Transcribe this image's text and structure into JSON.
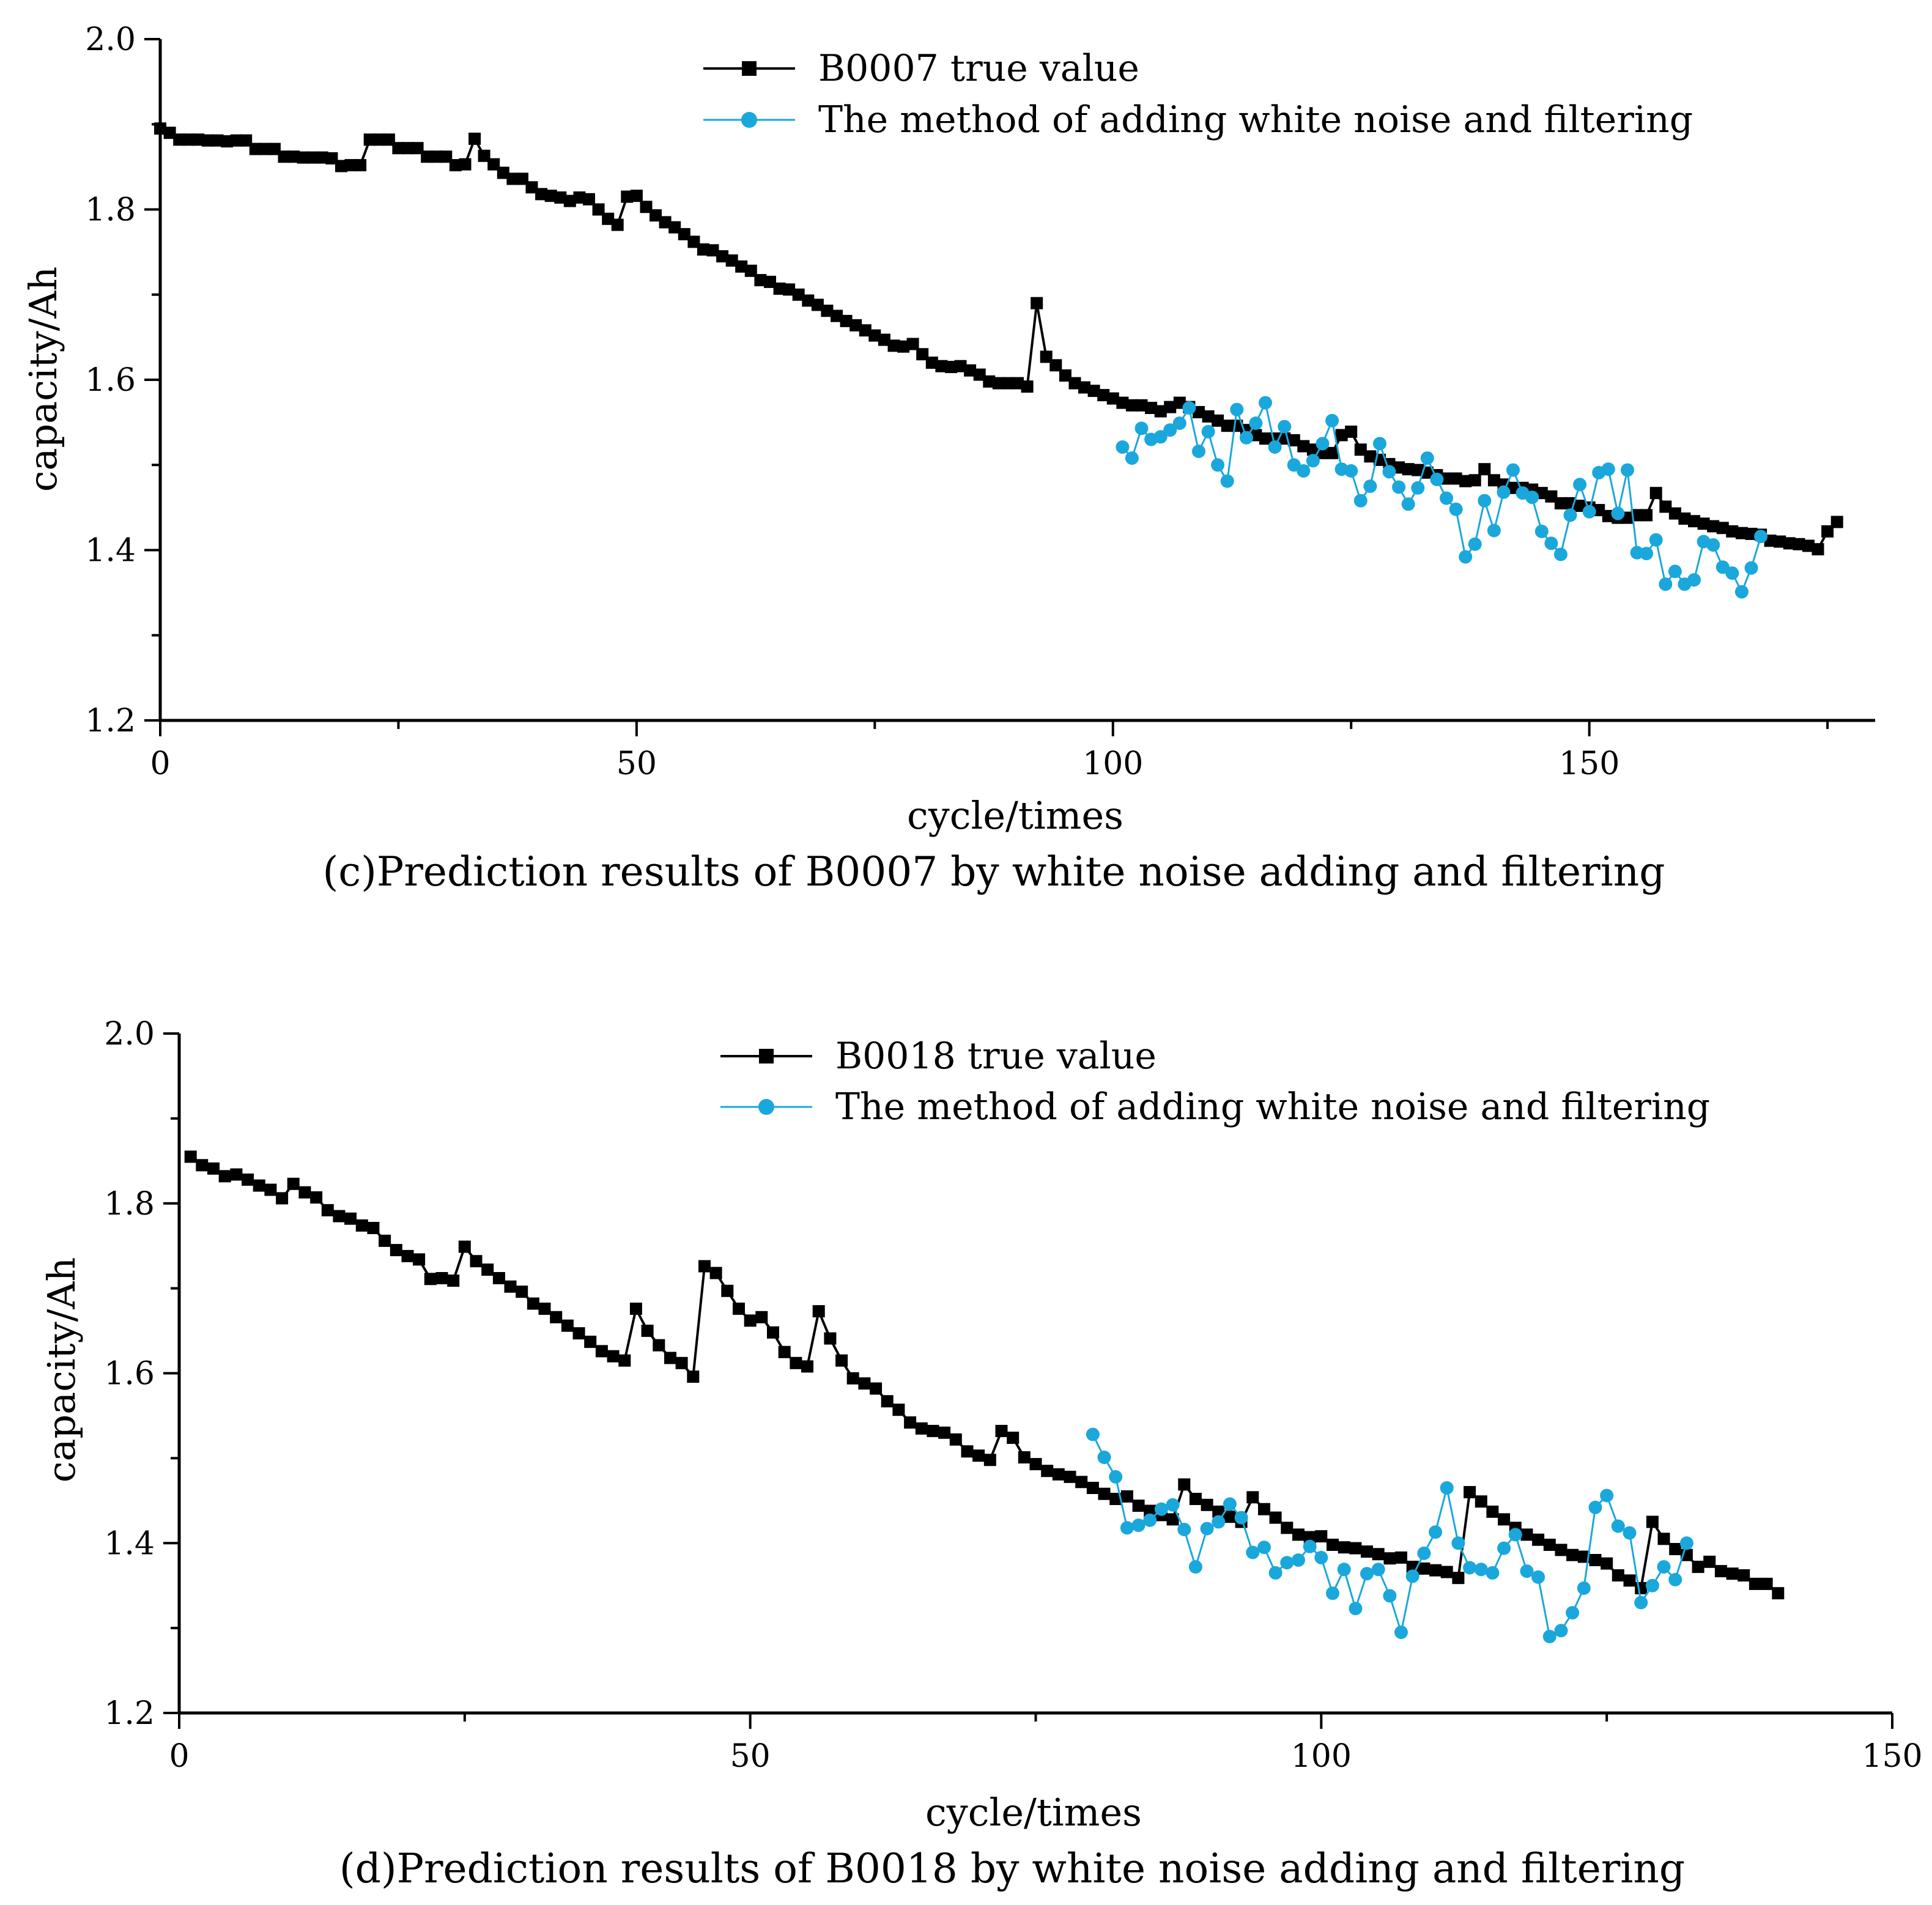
{
  "colors": {
    "true_value": "#000000",
    "predicted": "#1aa7dc",
    "background": "#ffffff"
  },
  "chart_data": [
    {
      "type": "line",
      "panel": "c",
      "caption": "(c)Prediction results of B0007 by white noise adding and filtering",
      "xlabel": "cycle/times",
      "ylabel": "capacity/Ah",
      "xlim": [
        0,
        180
      ],
      "ylim": [
        1.2,
        2.0
      ],
      "xticks": [
        0,
        50,
        100,
        150
      ],
      "yticks": [
        1.2,
        1.4,
        1.6,
        1.8,
        2.0
      ],
      "xtick_labels": [
        "0",
        "50",
        "100",
        "150"
      ],
      "ytick_labels": [
        "1.2",
        "1.4",
        "1.6",
        "1.8",
        "2.0"
      ],
      "legend": [
        "B0007 true value",
        "The method of adding white noise and filtering"
      ],
      "series": [
        {
          "name": "B0007 true value",
          "marker": "square",
          "x_start": 0,
          "values": [
            1.895,
            1.89,
            1.882,
            1.882,
            1.882,
            1.881,
            1.881,
            1.88,
            1.881,
            1.881,
            1.871,
            1.871,
            1.871,
            1.862,
            1.862,
            1.861,
            1.861,
            1.861,
            1.86,
            1.851,
            1.852,
            1.852,
            1.882,
            1.882,
            1.882,
            1.872,
            1.872,
            1.872,
            1.862,
            1.862,
            1.862,
            1.852,
            1.853,
            1.883,
            1.863,
            1.853,
            1.843,
            1.836,
            1.836,
            1.826,
            1.818,
            1.816,
            1.814,
            1.81,
            1.814,
            1.812,
            1.8,
            1.789,
            1.782,
            1.815,
            1.816,
            1.803,
            1.793,
            1.785,
            1.779,
            1.771,
            1.762,
            1.753,
            1.752,
            1.745,
            1.74,
            1.733,
            1.728,
            1.717,
            1.715,
            1.707,
            1.706,
            1.7,
            1.693,
            1.688,
            1.681,
            1.675,
            1.669,
            1.664,
            1.658,
            1.652,
            1.647,
            1.64,
            1.639,
            1.642,
            1.63,
            1.62,
            1.616,
            1.615,
            1.616,
            1.611,
            1.606,
            1.598,
            1.596,
            1.596,
            1.596,
            1.592,
            1.69,
            1.627,
            1.617,
            1.605,
            1.596,
            1.591,
            1.587,
            1.582,
            1.578,
            1.573,
            1.57,
            1.57,
            1.567,
            1.563,
            1.568,
            1.573,
            1.568,
            1.562,
            1.557,
            1.552,
            1.546,
            1.546,
            1.541,
            1.535,
            1.531,
            1.531,
            1.531,
            1.529,
            1.522,
            1.518,
            1.514,
            1.514,
            1.535,
            1.539,
            1.518,
            1.51,
            1.506,
            1.501,
            1.497,
            1.495,
            1.494,
            1.491,
            1.488,
            1.484,
            1.484,
            1.481,
            1.482,
            1.495,
            1.482,
            1.477,
            1.473,
            1.473,
            1.471,
            1.467,
            1.463,
            1.455,
            1.455,
            1.452,
            1.45,
            1.447,
            1.44,
            1.438,
            1.438,
            1.441,
            1.441,
            1.467,
            1.451,
            1.443,
            1.437,
            1.434,
            1.431,
            1.428,
            1.426,
            1.422,
            1.42,
            1.419,
            1.418,
            1.411,
            1.41,
            1.408,
            1.407,
            1.405,
            1.401,
            1.422,
            1.433
          ]
        },
        {
          "name": "The method of adding white noise and filtering",
          "marker": "circle",
          "x_start": 101,
          "values": [
            1.521,
            1.508,
            1.543,
            1.53,
            1.533,
            1.541,
            1.549,
            1.567,
            1.516,
            1.539,
            1.5,
            1.481,
            1.565,
            1.532,
            1.549,
            1.573,
            1.521,
            1.545,
            1.5,
            1.493,
            1.505,
            1.525,
            1.552,
            1.495,
            1.493,
            1.458,
            1.475,
            1.525,
            1.492,
            1.474,
            1.454,
            1.473,
            1.508,
            1.483,
            1.461,
            1.448,
            1.392,
            1.407,
            1.458,
            1.423,
            1.468,
            1.494,
            1.467,
            1.462,
            1.422,
            1.408,
            1.395,
            1.441,
            1.477,
            1.445,
            1.491,
            1.495,
            1.443,
            1.494,
            1.397,
            1.396,
            1.412,
            1.36,
            1.375,
            1.36,
            1.365,
            1.41,
            1.406,
            1.38,
            1.373,
            1.351,
            1.379,
            1.416
          ]
        }
      ]
    },
    {
      "type": "line",
      "panel": "d",
      "caption": "(d)Prediction results of B0018 by white noise adding and filtering",
      "xlabel": "cycle/times",
      "ylabel": "capacity/Ah",
      "xlim": [
        0,
        150
      ],
      "ylim": [
        1.2,
        2.0
      ],
      "xticks": [
        0,
        50,
        100,
        150
      ],
      "yticks": [
        1.2,
        1.4,
        1.6,
        1.8,
        2.0
      ],
      "xtick_labels": [
        "0",
        "50",
        "100",
        "150"
      ],
      "ytick_labels": [
        "1.2",
        "1.4",
        "1.6",
        "1.8",
        "2.0"
      ],
      "legend": [
        "B0018 true value",
        "The method of adding white noise and filtering"
      ],
      "series": [
        {
          "name": "B0018 true value",
          "marker": "square",
          "x_start": 1,
          "values": [
            1.855,
            1.845,
            1.841,
            1.832,
            1.834,
            1.828,
            1.821,
            1.816,
            1.806,
            1.823,
            1.813,
            1.807,
            1.792,
            1.785,
            1.782,
            1.774,
            1.771,
            1.756,
            1.745,
            1.738,
            1.734,
            1.711,
            1.712,
            1.709,
            1.749,
            1.732,
            1.722,
            1.712,
            1.702,
            1.696,
            1.682,
            1.676,
            1.666,
            1.656,
            1.647,
            1.637,
            1.626,
            1.62,
            1.615,
            1.676,
            1.65,
            1.633,
            1.618,
            1.612,
            1.596,
            1.726,
            1.718,
            1.697,
            1.676,
            1.662,
            1.666,
            1.648,
            1.625,
            1.612,
            1.608,
            1.673,
            1.641,
            1.615,
            1.594,
            1.588,
            1.582,
            1.567,
            1.557,
            1.542,
            1.535,
            1.532,
            1.53,
            1.522,
            1.508,
            1.503,
            1.498,
            1.532,
            1.524,
            1.501,
            1.493,
            1.485,
            1.481,
            1.478,
            1.472,
            1.465,
            1.458,
            1.452,
            1.455,
            1.444,
            1.438,
            1.433,
            1.428,
            1.469,
            1.452,
            1.445,
            1.437,
            1.431,
            1.425,
            1.454,
            1.44,
            1.43,
            1.418,
            1.41,
            1.407,
            1.408,
            1.398,
            1.395,
            1.394,
            1.39,
            1.387,
            1.382,
            1.383,
            1.372,
            1.37,
            1.368,
            1.366,
            1.359,
            1.46,
            1.449,
            1.437,
            1.428,
            1.418,
            1.41,
            1.404,
            1.398,
            1.392,
            1.386,
            1.384,
            1.38,
            1.376,
            1.362,
            1.356,
            1.347,
            1.425,
            1.405,
            1.393,
            1.386,
            1.372,
            1.378,
            1.367,
            1.364,
            1.362,
            1.352,
            1.352,
            1.341
          ]
        },
        {
          "name": "The method of adding white noise and filtering",
          "marker": "circle",
          "x_start": 80,
          "values": [
            1.528,
            1.501,
            1.478,
            1.418,
            1.421,
            1.427,
            1.44,
            1.445,
            1.416,
            1.372,
            1.417,
            1.425,
            1.446,
            1.43,
            1.389,
            1.395,
            1.365,
            1.377,
            1.38,
            1.396,
            1.383,
            1.341,
            1.369,
            1.323,
            1.364,
            1.369,
            1.338,
            1.295,
            1.361,
            1.388,
            1.413,
            1.465,
            1.4,
            1.371,
            1.369,
            1.365,
            1.394,
            1.41,
            1.367,
            1.36,
            1.29,
            1.297,
            1.318,
            1.347,
            1.442,
            1.456,
            1.42,
            1.412,
            1.33,
            1.35,
            1.372,
            1.357,
            1.4
          ]
        }
      ]
    }
  ]
}
